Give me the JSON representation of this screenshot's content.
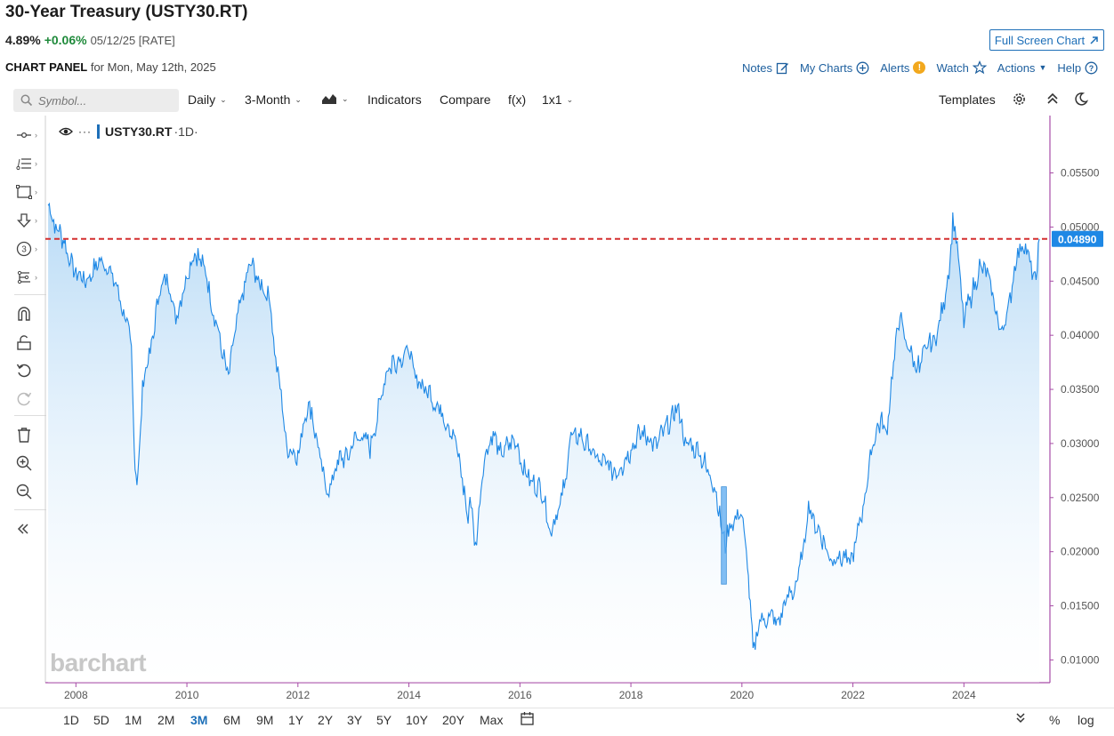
{
  "header": {
    "title": "30-Year Treasury (USTY30.RT)",
    "price": "4.89%",
    "change": "+0.06%",
    "meta": "05/12/25 [RATE]",
    "fullscreen_label": "Full Screen Chart"
  },
  "panel": {
    "label": "CHART PANEL",
    "date_text": "for Mon, May 12th, 2025"
  },
  "actions": {
    "notes": "Notes",
    "my_charts": "My Charts",
    "alerts": "Alerts",
    "alerts_badge": "!",
    "watch": "Watch",
    "actions": "Actions",
    "help": "Help"
  },
  "toolbar": {
    "symbol_placeholder": "Symbol...",
    "interval": "Daily",
    "period": "3-Month",
    "indicators": "Indicators",
    "compare": "Compare",
    "fx": "f(x)",
    "layout": "1x1",
    "templates": "Templates"
  },
  "legend": {
    "symbol": "USTY30.RT",
    "interval": "·1D·"
  },
  "watermark": "barchart",
  "ranges": [
    "1D",
    "5D",
    "1M",
    "2M",
    "3M",
    "6M",
    "9M",
    "1Y",
    "2Y",
    "3Y",
    "5Y",
    "10Y",
    "20Y",
    "Max"
  ],
  "selected_range": "3M",
  "scale_options": {
    "percent": "%",
    "log": "log"
  },
  "colors": {
    "line": "#1e88e5",
    "area_top": "#b9dbf6",
    "area_bottom": "#ffffff",
    "ref_line": "#d32f2f",
    "price_tag": "#1e88e5",
    "accent": "#1d6fb8"
  },
  "chart_data": {
    "type": "area",
    "series": [
      {
        "values": [
          [
            2007.5,
            0.052
          ],
          [
            2007.6,
            0.0505
          ],
          [
            2007.75,
            0.049
          ],
          [
            2007.9,
            0.047
          ],
          [
            2008.0,
            0.046
          ],
          [
            2008.1,
            0.045
          ],
          [
            2008.25,
            0.0455
          ],
          [
            2008.4,
            0.0465
          ],
          [
            2008.5,
            0.047
          ],
          [
            2008.7,
            0.045
          ],
          [
            2008.8,
            0.043
          ],
          [
            2008.9,
            0.042
          ],
          [
            2009.0,
            0.038
          ],
          [
            2009.05,
            0.03
          ],
          [
            2009.1,
            0.026
          ],
          [
            2009.15,
            0.03
          ],
          [
            2009.2,
            0.035
          ],
          [
            2009.3,
            0.038
          ],
          [
            2009.4,
            0.04
          ],
          [
            2009.5,
            0.044
          ],
          [
            2009.6,
            0.0455
          ],
          [
            2009.7,
            0.044
          ],
          [
            2009.8,
            0.042
          ],
          [
            2009.9,
            0.043
          ],
          [
            2010.0,
            0.046
          ],
          [
            2010.1,
            0.047
          ],
          [
            2010.2,
            0.0475
          ],
          [
            2010.3,
            0.0465
          ],
          [
            2010.4,
            0.044
          ],
          [
            2010.5,
            0.042
          ],
          [
            2010.65,
            0.038
          ],
          [
            2010.75,
            0.0365
          ],
          [
            2010.9,
            0.041
          ],
          [
            2011.0,
            0.044
          ],
          [
            2011.15,
            0.0465
          ],
          [
            2011.25,
            0.0455
          ],
          [
            2011.4,
            0.044
          ],
          [
            2011.5,
            0.043
          ],
          [
            2011.6,
            0.038
          ],
          [
            2011.7,
            0.034
          ],
          [
            2011.8,
            0.03
          ],
          [
            2011.9,
            0.029
          ],
          [
            2012.0,
            0.029
          ],
          [
            2012.15,
            0.033
          ],
          [
            2012.25,
            0.033
          ],
          [
            2012.4,
            0.0285
          ],
          [
            2012.5,
            0.0255
          ],
          [
            2012.6,
            0.0265
          ],
          [
            2012.75,
            0.0285
          ],
          [
            2012.9,
            0.029
          ],
          [
            2013.0,
            0.03
          ],
          [
            2013.15,
            0.031
          ],
          [
            2013.3,
            0.0295
          ],
          [
            2013.45,
            0.033
          ],
          [
            2013.55,
            0.036
          ],
          [
            2013.7,
            0.0375
          ],
          [
            2013.85,
            0.038
          ],
          [
            2014.0,
            0.0385
          ],
          [
            2014.1,
            0.0365
          ],
          [
            2014.2,
            0.0355
          ],
          [
            2014.4,
            0.0345
          ],
          [
            2014.55,
            0.033
          ],
          [
            2014.7,
            0.032
          ],
          [
            2014.85,
            0.03
          ],
          [
            2015.0,
            0.0255
          ],
          [
            2015.05,
            0.023
          ],
          [
            2015.1,
            0.025
          ],
          [
            2015.2,
            0.0205
          ],
          [
            2015.3,
            0.026
          ],
          [
            2015.4,
            0.0295
          ],
          [
            2015.5,
            0.031
          ],
          [
            2015.65,
            0.029
          ],
          [
            2015.8,
            0.03
          ],
          [
            2015.95,
            0.03
          ],
          [
            2016.0,
            0.029
          ],
          [
            2016.1,
            0.027
          ],
          [
            2016.25,
            0.0265
          ],
          [
            2016.4,
            0.0255
          ],
          [
            2016.5,
            0.023
          ],
          [
            2016.55,
            0.022
          ],
          [
            2016.65,
            0.023
          ],
          [
            2016.8,
            0.026
          ],
          [
            2016.9,
            0.03
          ],
          [
            2017.0,
            0.031
          ],
          [
            2017.2,
            0.03
          ],
          [
            2017.4,
            0.0285
          ],
          [
            2017.55,
            0.028
          ],
          [
            2017.7,
            0.0275
          ],
          [
            2017.85,
            0.028
          ],
          [
            2018.0,
            0.0295
          ],
          [
            2018.15,
            0.031
          ],
          [
            2018.3,
            0.0305
          ],
          [
            2018.45,
            0.03
          ],
          [
            2018.6,
            0.031
          ],
          [
            2018.75,
            0.0325
          ],
          [
            2018.8,
            0.0335
          ],
          [
            2018.9,
            0.032
          ],
          [
            2019.0,
            0.03
          ],
          [
            2019.2,
            0.0295
          ],
          [
            2019.35,
            0.028
          ],
          [
            2019.5,
            0.026
          ],
          [
            2019.6,
            0.0235
          ],
          [
            2019.7,
            0.0205
          ],
          [
            2019.8,
            0.0225
          ],
          [
            2019.9,
            0.0235
          ],
          [
            2020.0,
            0.023
          ],
          [
            2020.1,
            0.0195
          ],
          [
            2020.15,
            0.0145
          ],
          [
            2020.2,
            0.011
          ],
          [
            2020.3,
            0.013
          ],
          [
            2020.4,
            0.014
          ],
          [
            2020.5,
            0.014
          ],
          [
            2020.65,
            0.0135
          ],
          [
            2020.8,
            0.0155
          ],
          [
            2020.95,
            0.0165
          ],
          [
            2021.1,
            0.02
          ],
          [
            2021.2,
            0.024
          ],
          [
            2021.3,
            0.023
          ],
          [
            2021.45,
            0.021
          ],
          [
            2021.6,
            0.0195
          ],
          [
            2021.8,
            0.0195
          ],
          [
            2021.95,
            0.019
          ],
          [
            2022.05,
            0.021
          ],
          [
            2022.2,
            0.0245
          ],
          [
            2022.35,
            0.03
          ],
          [
            2022.5,
            0.032
          ],
          [
            2022.6,
            0.031
          ],
          [
            2022.75,
            0.038
          ],
          [
            2022.85,
            0.042
          ],
          [
            2022.95,
            0.0395
          ],
          [
            2023.05,
            0.038
          ],
          [
            2023.2,
            0.037
          ],
          [
            2023.35,
            0.039
          ],
          [
            2023.5,
            0.04
          ],
          [
            2023.65,
            0.043
          ],
          [
            2023.75,
            0.047
          ],
          [
            2023.8,
            0.051
          ],
          [
            2023.9,
            0.047
          ],
          [
            2024.0,
            0.0415
          ],
          [
            2024.15,
            0.044
          ],
          [
            2024.3,
            0.0465
          ],
          [
            2024.4,
            0.0455
          ],
          [
            2024.5,
            0.0445
          ],
          [
            2024.65,
            0.04
          ],
          [
            2024.75,
            0.0415
          ],
          [
            2024.85,
            0.044
          ],
          [
            2024.95,
            0.047
          ],
          [
            2025.05,
            0.049
          ],
          [
            2025.15,
            0.047
          ],
          [
            2025.25,
            0.046
          ],
          [
            2025.3,
            0.045
          ],
          [
            2025.36,
            0.0489
          ]
        ]
      }
    ],
    "highlight": {
      "x": [
        2019.63,
        2019.72
      ],
      "y": [
        0.017,
        0.026
      ]
    },
    "ref_line": 0.0489,
    "price_tag": "0.04890",
    "x_ticks": [
      "2008",
      "2010",
      "2012",
      "2014",
      "2016",
      "2018",
      "2020",
      "2022",
      "2024"
    ],
    "x_tick_values": [
      2008,
      2010,
      2012,
      2014,
      2016,
      2018,
      2020,
      2022,
      2024
    ],
    "y_ticks": [
      "0.05500",
      "0.05000",
      "0.04500",
      "0.04000",
      "0.03500",
      "0.03000",
      "0.02500",
      "0.02000",
      "0.01500",
      "0.01000"
    ],
    "y_tick_values": [
      0.055,
      0.05,
      0.045,
      0.04,
      0.035,
      0.03,
      0.025,
      0.02,
      0.015,
      0.01
    ],
    "xlim": [
      2007.45,
      2025.55
    ],
    "ylim": [
      0.0079,
      0.0603
    ],
    "grid": false
  }
}
